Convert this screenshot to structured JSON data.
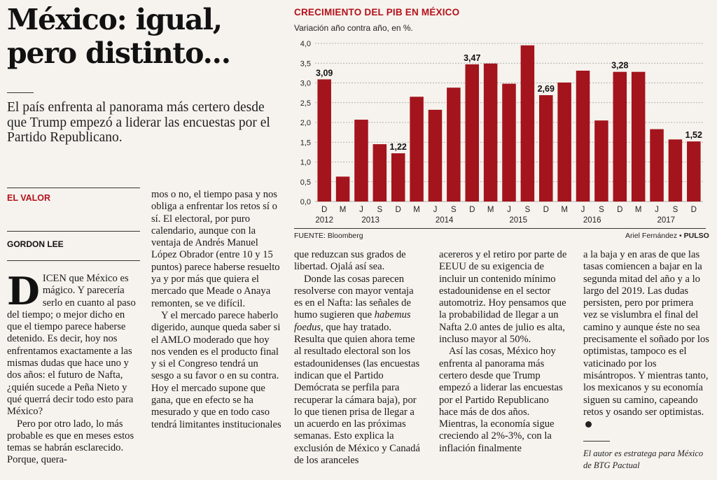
{
  "headline": [
    "México: igual,",
    "pero distinto..."
  ],
  "dek": "El país enfrenta al panorama más certero desde que Trump empezó a liderar las encuestas por el Partido Republicano.",
  "section": "EL VALOR",
  "author": "GORDON LEE",
  "chart": {
    "title": "CRECIMIENTO DEL PIB EN MÉXICO",
    "subtitle": "Variación año contra año, en %.",
    "source": "FUENTE: Bloomberg",
    "credit_name": "Ariel Fernández • ",
    "credit_brand": "PULSO",
    "bar_color": "#a3141c"
  },
  "chart_data": {
    "type": "bar",
    "title": "CRECIMIENTO DEL PIB EN MÉXICO",
    "subtitle": "Variación año contra año, en %.",
    "categories": [
      "D",
      "M",
      "J",
      "S",
      "D",
      "M",
      "J",
      "S",
      "D",
      "M",
      "J",
      "S",
      "D",
      "M",
      "J",
      "S",
      "D",
      "M",
      "J",
      "S",
      "D"
    ],
    "year_labels": [
      {
        "label": "2012",
        "index": 0
      },
      {
        "label": "2013",
        "index": 2.5
      },
      {
        "label": "2014",
        "index": 6.5
      },
      {
        "label": "2015",
        "index": 10.5
      },
      {
        "label": "2016",
        "index": 14.5
      },
      {
        "label": "2017",
        "index": 18.5
      }
    ],
    "values": [
      3.09,
      0.63,
      2.07,
      1.45,
      1.22,
      2.65,
      2.32,
      2.88,
      3.47,
      3.49,
      2.98,
      3.95,
      2.69,
      3.01,
      3.31,
      2.05,
      3.28,
      3.28,
      1.83,
      1.57,
      1.52
    ],
    "data_labels": [
      {
        "index": 0,
        "text": "3,09"
      },
      {
        "index": 4,
        "text": "1,22"
      },
      {
        "index": 8,
        "text": "3,47"
      },
      {
        "index": 12,
        "text": "2,69"
      },
      {
        "index": 16,
        "text": "3,28"
      },
      {
        "index": 20,
        "text": "1,52"
      }
    ],
    "yticks": [
      "0,0",
      "0,5",
      "1,0",
      "1,5",
      "2,0",
      "2,5",
      "3,0",
      "3,5",
      "4,0"
    ],
    "ylim": [
      0,
      4.0
    ],
    "grid": true
  },
  "columns": {
    "c1": {
      "dropcap": "D",
      "p1": "ICEN que México es mágico. Y parecería serlo en cuanto al paso del tiempo; o mejor dicho en que el tiempo parece haberse detenido. Es decir, hoy nos enfrentamos exactamente a las mismas dudas que hace uno y dos años: el futuro de Nafta, ¿quién sucede a Peña Nieto y qué querrá decir todo esto para México?",
      "p2": "Pero por otro lado, lo más probable es que en meses estos temas se habrán esclarecido. Porque, quera-"
    },
    "c2": {
      "p1": "mos o no, el tiempo pasa y nos obliga a enfrentar los retos sí o sí. El electoral, por puro calendario, aunque con la ventaja de Andrés Manuel López Obrador (entre 10 y 15 puntos) parece haberse resuelto ya y por más que quiera el mercado que Meade o Anaya remonten, se ve difícil.",
      "p2": "Y el mercado parece haberlo digerido, aunque queda saber si el AMLO moderado que hoy nos venden es el producto final y si el Congreso tendrá un sesgo a su favor o en su contra. Hoy el mercado supone que gana, que en efecto se ha mesurado y que en todo caso tendrá limitantes institucionales"
    },
    "c3": {
      "p1": "que reduzcan sus grados de libertad. Ojalá así sea.",
      "p2a": "Donde las cosas parecen resolverse con mayor ventaja es en el Nafta: las señales de humo sugieren que ",
      "p2em": "habemus foedus",
      "p2b": ", que hay tratado. Resulta que quien ahora teme al resultado electoral son los estadounidenses (las encuestas indican que el Partido Demócrata se perfila para recuperar la cámara baja), por lo que tienen prisa de llegar a un acuerdo en las próximas semanas. Esto explica la exclusión de México y Canadá de los aranceles"
    },
    "c4": {
      "p1": "acereros y el retiro por parte de EEUU de su exigencia de incluir un contenido mínimo estadounidense en el sector automotriz. Hoy pensamos que la probabilidad de llegar a un Nafta 2.0 antes de julio es alta, incluso mayor al 50%.",
      "p2": "Así las cosas, México hoy enfrenta al panorama más certero desde que Trump empezó a liderar las encuestas por el Partido Republicano hace más de dos años. Mientras, la economía sigue creciendo al 2%-3%, con la inflación finalmente"
    },
    "c5": {
      "p1": "a la baja y en aras de que las tasas comiencen a bajar en la segunda mitad del año y a lo largo del 2019. Las dudas persisten, pero por primera vez se vislumbra el final del camino y aunque éste no sea precisamente el soñado por los optimistas, tampoco es el vaticinado por los misántropos. Y mientras tanto, los mexicanos y su economía siguen su camino, capeando retos y osando ser optimistas.",
      "credit": "El autor es estratega para México de BTG Pactual"
    }
  }
}
